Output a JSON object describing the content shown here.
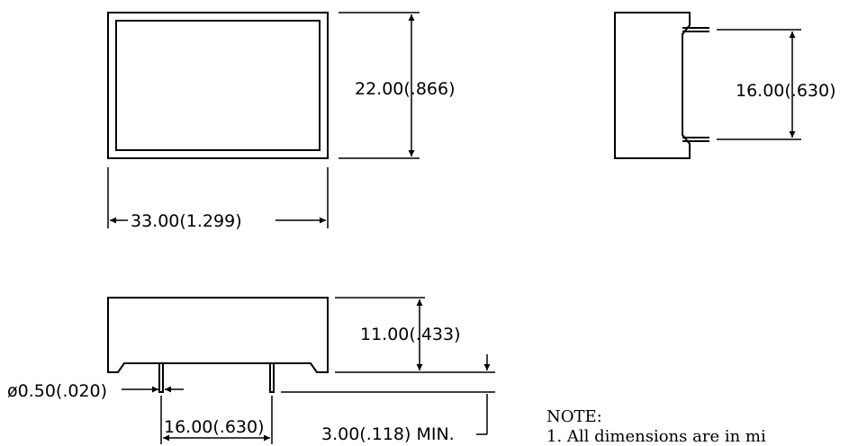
{
  "dimensions": {
    "top_view_height": "22.00(.866)",
    "top_view_width": "33.00(1.299)",
    "side_view_pin_spacing": "16.00(.630)",
    "front_view_height": "11.00(.433)",
    "pin_diameter": "ø0.50(.020)",
    "pin_spacing": "16.00(.630)",
    "pin_length": "3.00(.118)  MIN."
  },
  "note": {
    "title": "NOTE:",
    "line1": "1. All dimensions are in mi"
  }
}
